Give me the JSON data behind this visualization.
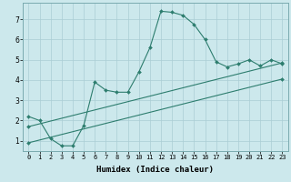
{
  "xlabel": "Humidex (Indice chaleur)",
  "ylabel": "",
  "xlim": [
    -0.5,
    23.5
  ],
  "ylim": [
    0.5,
    7.8
  ],
  "bg_color": "#cce8ec",
  "line_color": "#2d7d6e",
  "grid_color": "#aacdd4",
  "line1_x": [
    0,
    1,
    2,
    3,
    4,
    5,
    6,
    7,
    8,
    9,
    10,
    11,
    12,
    13,
    14,
    15,
    16,
    17,
    18,
    19,
    20,
    21,
    22,
    23
  ],
  "line1_y": [
    2.2,
    2.0,
    1.1,
    0.75,
    0.75,
    1.75,
    3.9,
    3.5,
    3.4,
    3.4,
    4.4,
    5.6,
    7.4,
    7.35,
    7.2,
    6.75,
    6.0,
    4.9,
    4.65,
    4.8,
    5.0,
    4.7,
    5.0,
    4.8
  ],
  "line2_x": [
    0,
    23
  ],
  "line2_y": [
    1.7,
    4.85
  ],
  "line3_x": [
    0,
    23
  ],
  "line3_y": [
    0.9,
    4.05
  ],
  "yticks": [
    1,
    2,
    3,
    4,
    5,
    6,
    7
  ],
  "xticks": [
    0,
    1,
    2,
    3,
    4,
    5,
    6,
    7,
    8,
    9,
    10,
    11,
    12,
    13,
    14,
    15,
    16,
    17,
    18,
    19,
    20,
    21,
    22,
    23
  ],
  "marker_size": 2.0,
  "line_width": 0.8,
  "tick_fontsize": 5.0,
  "xlabel_fontsize": 6.5
}
